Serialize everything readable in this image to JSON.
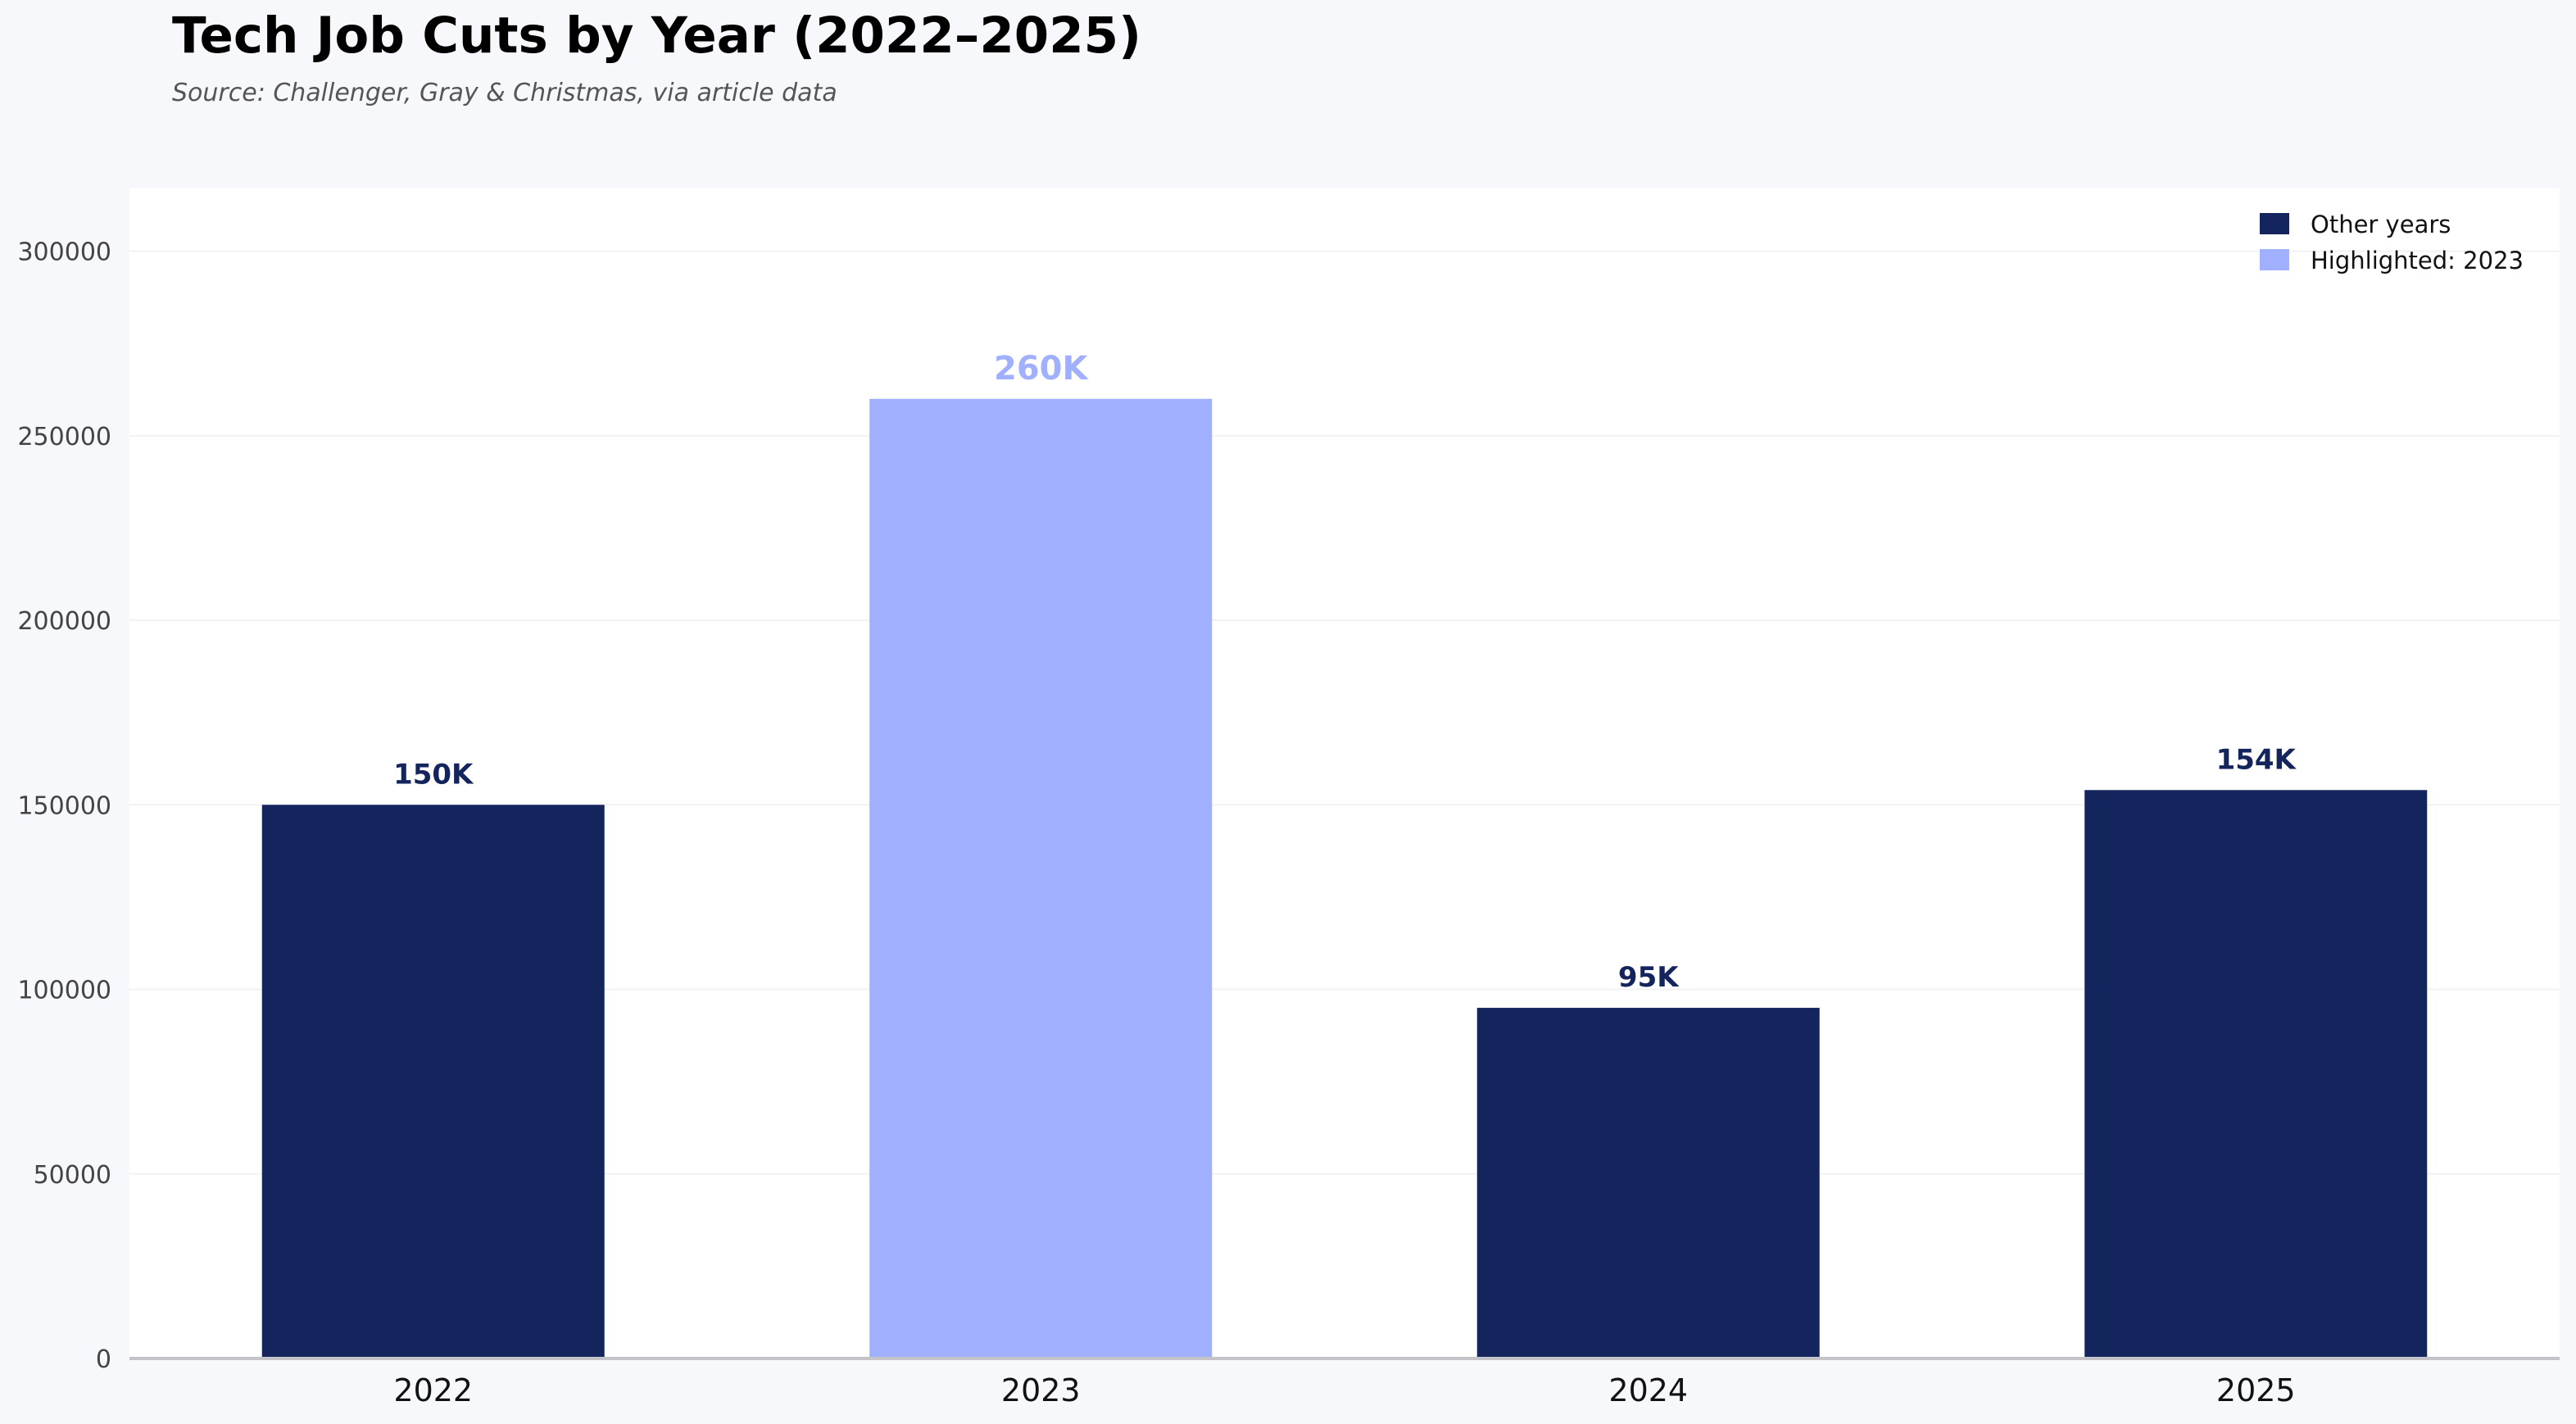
{
  "chart_data": {
    "type": "bar",
    "title": "Tech Job Cuts by Year (2022–2025)",
    "subtitle": "Source: Challenger, Gray & Christmas, via article data",
    "xlabel": "",
    "ylabel": "",
    "categories": [
      "2022",
      "2023",
      "2024",
      "2025"
    ],
    "values": [
      150000,
      260000,
      95000,
      154000
    ],
    "data_labels": [
      "150K",
      "260K",
      "95K",
      "154K"
    ],
    "highlighted_category": "2023",
    "ylim": [
      0,
      317000
    ],
    "yticks": [
      0,
      50000,
      100000,
      150000,
      200000,
      250000,
      300000
    ],
    "ytick_labels": [
      "0",
      "50000",
      "100000",
      "150000",
      "200000",
      "250000",
      "300000"
    ],
    "grid": true,
    "legend": {
      "placement": "top-right",
      "entries": [
        {
          "label": "Other years",
          "color": "#14245c"
        },
        {
          "label": "Highlighted: 2023",
          "color": "#a0b0fe"
        }
      ]
    },
    "colors": {
      "default_bar": "#14245c",
      "highlight_bar": "#a0b0fe",
      "plot_background": "#ffffff",
      "page_background": "#f7f8fc"
    }
  }
}
